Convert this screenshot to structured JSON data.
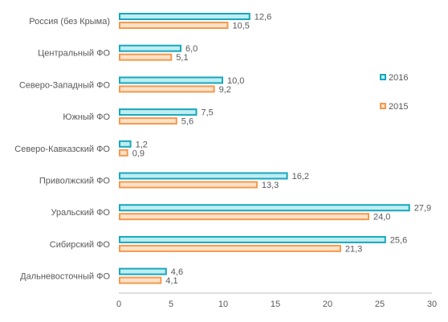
{
  "chart_data": {
    "type": "bar",
    "orientation": "horizontal",
    "categories": [
      "Россия (без Крыма)",
      "Центральный ФО",
      "Северо-Западный ФО",
      "Южный ФО",
      "Северо-Кавказский ФО",
      "Приволжский ФО",
      "Уральский ФО",
      "Сибирский ФО",
      "Дальневосточный ФО"
    ],
    "series": [
      {
        "name": "2016",
        "values": [
          12.6,
          6.0,
          10.0,
          7.5,
          1.2,
          16.2,
          27.9,
          25.6,
          4.6
        ],
        "labels": [
          "12,6",
          "6,0",
          "10,0",
          "7,5",
          "1,2",
          "16,2",
          "27,9",
          "25,6",
          "4,6"
        ],
        "stroke": "#1aa6bd",
        "fill": "#bdeef2"
      },
      {
        "name": "2015",
        "values": [
          10.5,
          5.1,
          9.2,
          5.6,
          0.9,
          13.3,
          24.0,
          21.3,
          4.1
        ],
        "labels": [
          "10,5",
          "5,1",
          "9,2",
          "5,6",
          "0,9",
          "13,3",
          "24,0",
          "21,3",
          "4,1"
        ],
        "stroke": "#f39a4c",
        "fill": "#fde1c9"
      }
    ],
    "xlim": [
      0,
      30
    ],
    "xticks": [
      0,
      5,
      10,
      15,
      20,
      25,
      30
    ],
    "xtick_labels": [
      "0",
      "5",
      "10",
      "15",
      "20",
      "25",
      "30"
    ],
    "legend_position": "right",
    "grid": false,
    "title": "",
    "xlabel": "",
    "ylabel": ""
  },
  "colors": {
    "axis": "#bfbfbf",
    "text": "#595959"
  }
}
